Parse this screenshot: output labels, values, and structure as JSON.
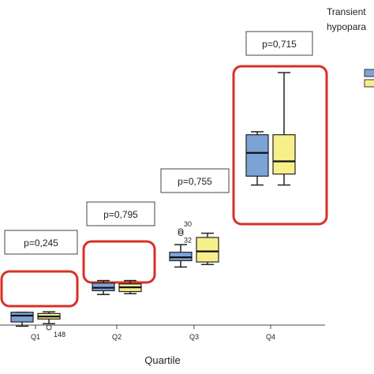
{
  "chart_data": {
    "type": "box",
    "xlabel": "Quartile",
    "categories": [
      "Q1",
      "Q2",
      "Q3",
      "Q4"
    ],
    "legend": {
      "title_lines": [
        "Transient",
        "hypopara"
      ],
      "placement": "top-right"
    },
    "series": [
      {
        "color": "#7ba3d6",
        "boxes": [
          {
            "min": 1,
            "q1": 2,
            "median": 3.5,
            "q3": 4.3,
            "max": 4.3
          },
          {
            "min": 8.5,
            "q1": 9.4,
            "median": 10.1,
            "q3": 11.2,
            "max": 11.8
          },
          {
            "min": 15,
            "q1": 16.5,
            "median": 17.3,
            "q3": 18.5,
            "max": 20.3
          },
          {
            "min": 34.4,
            "q1": 36.5,
            "median": 42,
            "q3": 46.3,
            "max": 47
          }
        ]
      },
      {
        "color": "#f7f08a",
        "boxes": [
          {
            "min": 1.6,
            "q1": 2.7,
            "median": 3.3,
            "q3": 4,
            "max": 4.4
          },
          {
            "min": 8.7,
            "q1": 9.2,
            "median": 10.2,
            "q3": 11,
            "max": 11.8
          },
          {
            "min": 15.6,
            "q1": 16.2,
            "median": 18.7,
            "q3": 22,
            "max": 23
          },
          {
            "min": 34.4,
            "q1": 37,
            "median": 40,
            "q3": 46.3,
            "max": 61
          }
        ]
      }
    ],
    "outliers": [
      {
        "category": "Q1",
        "series": 1,
        "value": 0.7,
        "label": "148"
      },
      {
        "category": "Q3",
        "series": 0,
        "value": 23.5,
        "label": "30"
      },
      {
        "category": "Q3",
        "series": 0,
        "value": 23.0,
        "label": "32"
      }
    ],
    "annotations": [
      {
        "category": "Q1",
        "text": "p=0,245"
      },
      {
        "category": "Q2",
        "text": "p=0,795"
      },
      {
        "category": "Q3",
        "text": "p=0,755"
      },
      {
        "category": "Q4",
        "text": "p=0,715"
      }
    ],
    "highlight_color": "#d93025"
  }
}
